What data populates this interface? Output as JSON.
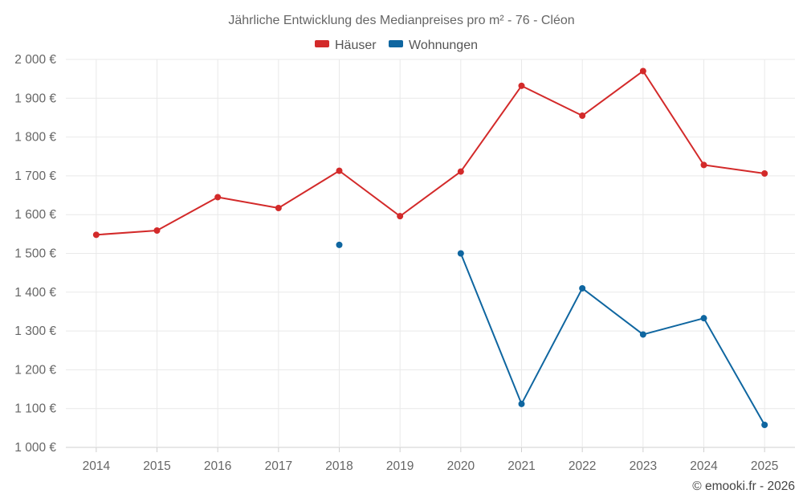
{
  "chart_data": {
    "type": "line",
    "title": "Jährliche Entwicklung des Medianpreises pro m² - 76 - Cléon",
    "categories": [
      "2014",
      "2015",
      "2016",
      "2017",
      "2018",
      "2019",
      "2020",
      "2021",
      "2022",
      "2023",
      "2024",
      "2025"
    ],
    "y_tick_labels": [
      "1 000 €",
      "1 100 €",
      "1 200 €",
      "1 300 €",
      "1 400 €",
      "1 500 €",
      "1 600 €",
      "1 700 €",
      "1 800 €",
      "1 900 €",
      "2 000 €"
    ],
    "y_ticks": [
      1000,
      1100,
      1200,
      1300,
      1400,
      1500,
      1600,
      1700,
      1800,
      1900,
      2000
    ],
    "ylim": [
      1000,
      2000
    ],
    "legend_position": "top-center",
    "series": [
      {
        "name": "Häuser",
        "color": "#d32a2a",
        "values": [
          1548,
          1559,
          1645,
          1617,
          1713,
          1596,
          1711,
          1932,
          1855,
          1970,
          1728,
          1706
        ]
      },
      {
        "name": "Wohnungen",
        "color": "#0f66a0",
        "values": [
          null,
          null,
          null,
          null,
          1522,
          null,
          1500,
          1112,
          1410,
          1291,
          1333,
          1058
        ]
      }
    ],
    "credit": "© emooki.fr - 2026"
  }
}
